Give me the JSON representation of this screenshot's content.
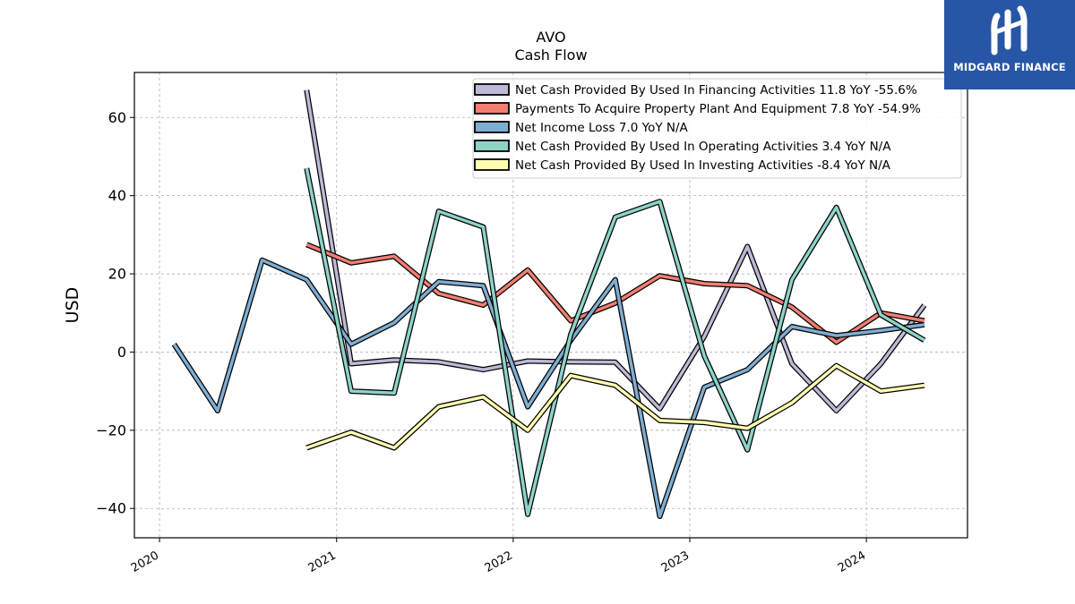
{
  "brand": {
    "name": "MIDGARD FINANCE"
  },
  "chart_data": {
    "type": "line",
    "title": "AVO",
    "subtitle": "Cash Flow",
    "xlabel": "",
    "ylabel": "USD",
    "ylim": [
      -47.5,
      71.5
    ],
    "xlim": [
      "2019-11-10",
      "2024-07-28"
    ],
    "grid": true,
    "legend_position": "top-right",
    "x_ticks": [
      "2020",
      "2021",
      "2022",
      "2023",
      "2024"
    ],
    "y_ticks": [
      60,
      40,
      20,
      0,
      -20,
      -40
    ],
    "y_tick_labels": [
      "60",
      "40",
      "20",
      "0",
      "−20",
      "−40"
    ],
    "series": [
      {
        "name": "Net Cash Provided By Used In Financing Activities",
        "legend": "Net Cash Provided By Used In Financing Activities  11.8 YoY -55.6%",
        "color": "#bcb9d6",
        "x": [
          "2020-10-31",
          "2021-01-31",
          "2021-04-30",
          "2021-07-31",
          "2021-10-31",
          "2022-01-31",
          "2022-04-30",
          "2022-07-31",
          "2022-10-31",
          "2023-01-31",
          "2023-04-30",
          "2023-07-31",
          "2023-10-31",
          "2024-01-31",
          "2024-04-30"
        ],
        "y": [
          67,
          -3,
          -2,
          -2.5,
          -4.5,
          -2.3,
          -2.5,
          -2.6,
          -14.5,
          4,
          27,
          -3,
          -15,
          -3,
          12
        ]
      },
      {
        "name": "Payments To Acquire Property Plant And Equipment",
        "legend": "Payments To Acquire Property Plant And Equipment  7.8 YoY -54.9%",
        "color": "#f27e72",
        "x": [
          "2020-10-31",
          "2021-01-31",
          "2021-04-30",
          "2021-07-31",
          "2021-10-31",
          "2022-01-31",
          "2022-04-30",
          "2022-07-31",
          "2022-10-31",
          "2023-01-31",
          "2023-04-30",
          "2023-07-31",
          "2023-10-31",
          "2024-01-31",
          "2024-04-30"
        ],
        "y": [
          27.5,
          22.8,
          24.5,
          15,
          12,
          21,
          8,
          12.5,
          19.5,
          17.5,
          17,
          11.5,
          2.5,
          10,
          8
        ]
      },
      {
        "name": "Net Income Loss",
        "legend": "Net Income Loss  7.0 YoY N/A",
        "color": "#7fadd2",
        "x": [
          "2020-01-31",
          "2020-04-30",
          "2020-07-31",
          "2020-10-31",
          "2021-01-31",
          "2021-04-30",
          "2021-07-31",
          "2021-10-31",
          "2022-01-31",
          "2022-04-30",
          "2022-07-31",
          "2022-10-31",
          "2023-01-31",
          "2023-04-30",
          "2023-07-31",
          "2023-10-31",
          "2024-01-31",
          "2024-04-30"
        ],
        "y": [
          2,
          -15,
          23.5,
          18.5,
          2,
          7.5,
          18,
          17,
          -14,
          3,
          18.5,
          -42,
          -9,
          -4.5,
          6.5,
          4.2,
          5.5,
          7
        ]
      },
      {
        "name": "Net Cash Provided By Used In Operating Activities",
        "legend": "Net Cash Provided By Used In Operating Activities  3.4 YoY N/A",
        "color": "#8dd3c7",
        "x": [
          "2020-10-31",
          "2021-01-31",
          "2021-04-30",
          "2021-07-31",
          "2021-10-31",
          "2022-01-31",
          "2022-04-30",
          "2022-07-31",
          "2022-10-31",
          "2023-01-31",
          "2023-04-30",
          "2023-07-31",
          "2023-10-31",
          "2024-01-31",
          "2024-04-30"
        ],
        "y": [
          47,
          -10,
          -10.5,
          36,
          32,
          -41.5,
          4.5,
          34.5,
          38.5,
          -1,
          -25,
          18.5,
          37,
          9.5,
          3
        ]
      },
      {
        "name": "Net Cash Provided By Used In Investing Activities",
        "legend": "Net Cash Provided By Used In Investing Activities  -8.4 YoY N/A",
        "color": "#ffffb3",
        "x": [
          "2020-10-31",
          "2021-01-31",
          "2021-04-30",
          "2021-07-31",
          "2021-10-31",
          "2022-01-31",
          "2022-04-30",
          "2022-07-31",
          "2022-10-31",
          "2023-01-31",
          "2023-04-30",
          "2023-07-31",
          "2023-10-31",
          "2024-01-31",
          "2024-04-30"
        ],
        "y": [
          -24.5,
          -20.5,
          -24.5,
          -14,
          -11.5,
          -20,
          -6,
          -8.5,
          -17.5,
          -18,
          -19.5,
          -13,
          -3.5,
          -10,
          -8.5
        ]
      }
    ]
  }
}
